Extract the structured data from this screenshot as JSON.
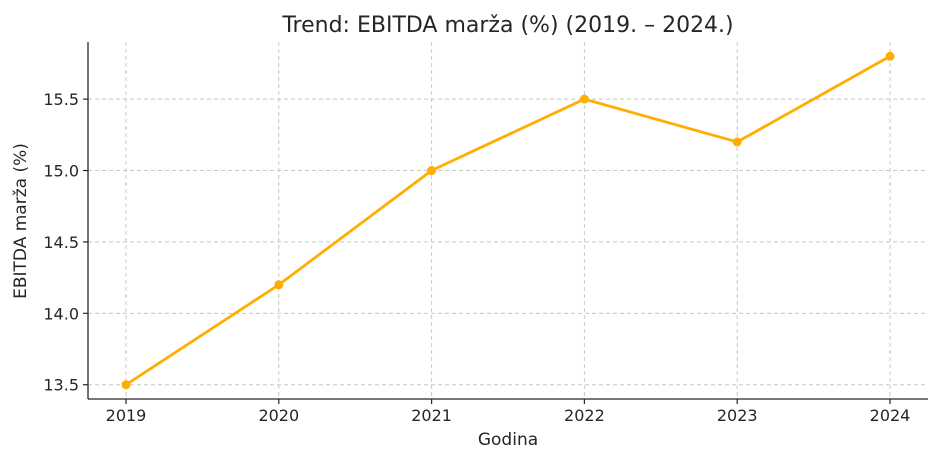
{
  "chart_data": {
    "type": "line",
    "title": "Trend: EBITDA marža (%) (2019. – 2024.)",
    "xlabel": "Godina",
    "ylabel": "EBITDA marža (%)",
    "categories": [
      "2019",
      "2020",
      "2021",
      "2022",
      "2023",
      "2024"
    ],
    "series": [
      {
        "values": [
          13.5,
          14.2,
          15.0,
          15.5,
          15.2,
          15.8
        ]
      }
    ],
    "y_ticks": [
      "13.5",
      "14.0",
      "14.5",
      "15.0",
      "15.5"
    ],
    "ylim": [
      13.4,
      15.9
    ],
    "grid": true,
    "line_color": "#FFAE00"
  }
}
